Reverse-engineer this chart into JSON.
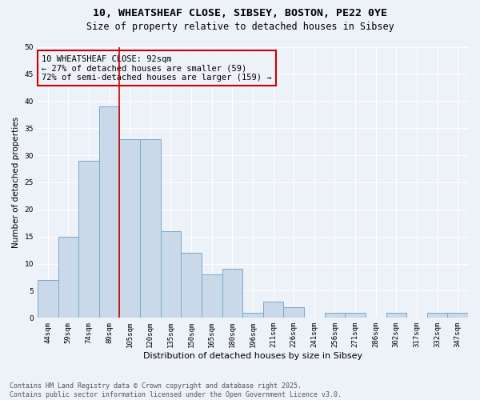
{
  "title_line1": "10, WHEATSHEAF CLOSE, SIBSEY, BOSTON, PE22 0YE",
  "title_line2": "Size of property relative to detached houses in Sibsey",
  "xlabel": "Distribution of detached houses by size in Sibsey",
  "ylabel": "Number of detached properties",
  "categories": [
    "44sqm",
    "59sqm",
    "74sqm",
    "89sqm",
    "105sqm",
    "120sqm",
    "135sqm",
    "150sqm",
    "165sqm",
    "180sqm",
    "196sqm",
    "211sqm",
    "226sqm",
    "241sqm",
    "256sqm",
    "271sqm",
    "286sqm",
    "302sqm",
    "317sqm",
    "332sqm",
    "347sqm"
  ],
  "values": [
    7,
    15,
    29,
    39,
    33,
    33,
    16,
    12,
    8,
    9,
    1,
    3,
    2,
    0,
    1,
    1,
    0,
    1,
    0,
    1,
    1
  ],
  "bar_color": "#c9d9ea",
  "bar_edge_color": "#7aaac8",
  "vline_color": "#cc0000",
  "vline_x_index": 3,
  "annotation_text_line1": "10 WHEATSHEAF CLOSE: 92sqm",
  "annotation_text_line2": "← 27% of detached houses are smaller (59)",
  "annotation_text_line3": "72% of semi-detached houses are larger (159) →",
  "box_edge_color": "#cc0000",
  "ylim": [
    0,
    50
  ],
  "yticks": [
    0,
    5,
    10,
    15,
    20,
    25,
    30,
    35,
    40,
    45,
    50
  ],
  "background_color": "#edf1f8",
  "grid_color": "#ffffff",
  "footer_text": "Contains HM Land Registry data © Crown copyright and database right 2025.\nContains public sector information licensed under the Open Government Licence v3.0.",
  "title_fontsize": 9.5,
  "subtitle_fontsize": 8.5,
  "axis_label_fontsize": 8,
  "tick_fontsize": 6.5,
  "annotation_fontsize": 7.5,
  "footer_fontsize": 6,
  "ylabel_fontsize": 7.5
}
